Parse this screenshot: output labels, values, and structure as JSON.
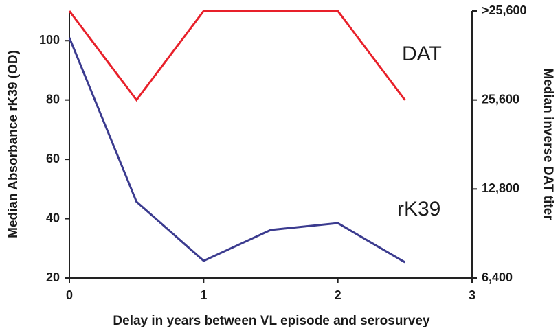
{
  "chart_data": {
    "type": "line",
    "xlabel": "Delay in years between VL episode and serosurvey",
    "ylabel": "Median Absorbance rK39 (OD)",
    "y2label": "Median inverse DAT titer",
    "xlim": [
      0,
      3
    ],
    "xticks": [
      0,
      1,
      2,
      3
    ],
    "ylim": [
      20,
      110
    ],
    "yticks": [
      20,
      40,
      60,
      80,
      100
    ],
    "y2lim": [
      6400,
      51200
    ],
    "y2scale": "log",
    "y2ticks": [
      {
        "value": 6400,
        "label": "6,400"
      },
      {
        "value": 12800,
        "label": "12,800"
      },
      {
        "value": 25600,
        "label": "25,600"
      },
      {
        "value": 51200,
        "label": ">25,600"
      }
    ],
    "series": [
      {
        "name": "rK39",
        "color": "#3b3b8f",
        "x": [
          0,
          0.5,
          1,
          1.5,
          2,
          2.5
        ],
        "values": [
          101,
          45.7,
          25.8,
          36.2,
          38.5,
          25.3
        ]
      },
      {
        "name": "DAT",
        "color": "#e8202a",
        "axis": "y2",
        "x": [
          0,
          0.5,
          1,
          2,
          2.5
        ],
        "values": [
          51200,
          25600,
          51200,
          51200,
          25600
        ]
      }
    ]
  }
}
